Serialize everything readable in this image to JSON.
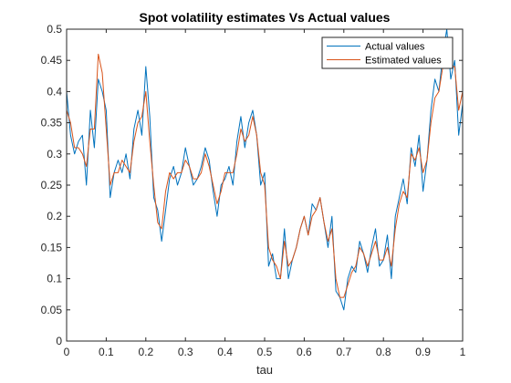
{
  "chart_data": {
    "type": "line",
    "title": "Spot volatility estimates Vs Actual values",
    "xlabel": "tau",
    "ylabel": "",
    "xlim": [
      0,
      1
    ],
    "ylim": [
      0,
      0.5
    ],
    "xticks": [
      0,
      0.1,
      0.2,
      0.3,
      0.4,
      0.5,
      0.6,
      0.7,
      0.8,
      0.9,
      1
    ],
    "xtick_labels": [
      "0",
      "0.1",
      "0.2",
      "0.3",
      "0.4",
      "0.5",
      "0.6",
      "0.7",
      "0.8",
      "0.9",
      "1"
    ],
    "yticks": [
      0,
      0.05,
      0.1,
      0.15,
      0.2,
      0.25,
      0.3,
      0.35,
      0.4,
      0.45,
      0.5
    ],
    "ytick_labels": [
      "0",
      "0.05",
      "0.1",
      "0.15",
      "0.2",
      "0.25",
      "0.3",
      "0.35",
      "0.4",
      "0.45",
      "0.5"
    ],
    "grid": false,
    "legend_position": "top-right",
    "series": [
      {
        "name": "Actual values",
        "color": "#0072BD",
        "x": [
          0,
          0.01,
          0.02,
          0.03,
          0.04,
          0.05,
          0.06,
          0.07,
          0.08,
          0.09,
          0.1,
          0.11,
          0.12,
          0.13,
          0.14,
          0.15,
          0.16,
          0.17,
          0.18,
          0.19,
          0.2,
          0.21,
          0.22,
          0.23,
          0.24,
          0.25,
          0.26,
          0.27,
          0.28,
          0.29,
          0.3,
          0.31,
          0.32,
          0.33,
          0.34,
          0.35,
          0.36,
          0.37,
          0.38,
          0.39,
          0.4,
          0.41,
          0.42,
          0.43,
          0.44,
          0.45,
          0.46,
          0.47,
          0.48,
          0.49,
          0.5,
          0.51,
          0.52,
          0.53,
          0.54,
          0.55,
          0.56,
          0.57,
          0.58,
          0.59,
          0.6,
          0.61,
          0.62,
          0.63,
          0.64,
          0.65,
          0.66,
          0.67,
          0.68,
          0.69,
          0.7,
          0.71,
          0.72,
          0.73,
          0.74,
          0.75,
          0.76,
          0.77,
          0.78,
          0.79,
          0.8,
          0.81,
          0.82,
          0.83,
          0.84,
          0.85,
          0.86,
          0.87,
          0.88,
          0.89,
          0.9,
          0.91,
          0.92,
          0.93,
          0.94,
          0.95,
          0.96,
          0.97,
          0.98,
          0.99,
          1
        ],
        "values": [
          0.4,
          0.33,
          0.3,
          0.32,
          0.33,
          0.25,
          0.37,
          0.31,
          0.42,
          0.4,
          0.37,
          0.23,
          0.27,
          0.29,
          0.27,
          0.3,
          0.26,
          0.34,
          0.37,
          0.33,
          0.44,
          0.36,
          0.23,
          0.21,
          0.16,
          0.21,
          0.26,
          0.28,
          0.25,
          0.27,
          0.31,
          0.28,
          0.25,
          0.26,
          0.28,
          0.31,
          0.29,
          0.24,
          0.2,
          0.25,
          0.26,
          0.28,
          0.25,
          0.32,
          0.36,
          0.31,
          0.35,
          0.37,
          0.33,
          0.25,
          0.27,
          0.12,
          0.14,
          0.1,
          0.1,
          0.18,
          0.1,
          0.13,
          0.15,
          0.18,
          0.2,
          0.17,
          0.22,
          0.21,
          0.23,
          0.19,
          0.15,
          0.2,
          0.08,
          0.07,
          0.05,
          0.1,
          0.12,
          0.11,
          0.16,
          0.14,
          0.11,
          0.15,
          0.18,
          0.12,
          0.13,
          0.17,
          0.1,
          0.2,
          0.23,
          0.26,
          0.22,
          0.31,
          0.28,
          0.33,
          0.24,
          0.29,
          0.37,
          0.42,
          0.4,
          0.46,
          0.5,
          0.42,
          0.45,
          0.33,
          0.38
        ]
      },
      {
        "name": "Estimated values",
        "color": "#D95319",
        "x": [
          0,
          0.01,
          0.02,
          0.03,
          0.04,
          0.05,
          0.06,
          0.07,
          0.08,
          0.09,
          0.1,
          0.11,
          0.12,
          0.13,
          0.14,
          0.15,
          0.16,
          0.17,
          0.18,
          0.19,
          0.2,
          0.21,
          0.22,
          0.23,
          0.24,
          0.25,
          0.26,
          0.27,
          0.28,
          0.29,
          0.3,
          0.31,
          0.32,
          0.33,
          0.34,
          0.35,
          0.36,
          0.37,
          0.38,
          0.39,
          0.4,
          0.41,
          0.42,
          0.43,
          0.44,
          0.45,
          0.46,
          0.47,
          0.48,
          0.49,
          0.5,
          0.51,
          0.52,
          0.53,
          0.54,
          0.55,
          0.56,
          0.57,
          0.58,
          0.59,
          0.6,
          0.61,
          0.62,
          0.63,
          0.64,
          0.65,
          0.66,
          0.67,
          0.68,
          0.69,
          0.7,
          0.71,
          0.72,
          0.73,
          0.74,
          0.75,
          0.76,
          0.77,
          0.78,
          0.79,
          0.8,
          0.81,
          0.82,
          0.83,
          0.84,
          0.85,
          0.86,
          0.87,
          0.88,
          0.89,
          0.9,
          0.91,
          0.92,
          0.93,
          0.94,
          0.95,
          0.96,
          0.97,
          0.98,
          0.99,
          1
        ],
        "values": [
          0.37,
          0.35,
          0.31,
          0.31,
          0.3,
          0.28,
          0.34,
          0.34,
          0.46,
          0.43,
          0.34,
          0.25,
          0.27,
          0.27,
          0.29,
          0.28,
          0.27,
          0.32,
          0.35,
          0.36,
          0.4,
          0.32,
          0.25,
          0.19,
          0.18,
          0.24,
          0.27,
          0.26,
          0.27,
          0.27,
          0.29,
          0.28,
          0.26,
          0.26,
          0.27,
          0.3,
          0.28,
          0.25,
          0.22,
          0.24,
          0.27,
          0.27,
          0.27,
          0.3,
          0.34,
          0.32,
          0.33,
          0.36,
          0.33,
          0.27,
          0.25,
          0.15,
          0.13,
          0.12,
          0.1,
          0.16,
          0.12,
          0.13,
          0.15,
          0.18,
          0.2,
          0.17,
          0.2,
          0.21,
          0.23,
          0.19,
          0.16,
          0.18,
          0.1,
          0.07,
          0.07,
          0.09,
          0.11,
          0.12,
          0.15,
          0.14,
          0.12,
          0.14,
          0.16,
          0.13,
          0.13,
          0.15,
          0.12,
          0.18,
          0.22,
          0.24,
          0.23,
          0.3,
          0.29,
          0.31,
          0.27,
          0.29,
          0.35,
          0.39,
          0.4,
          0.44,
          0.47,
          0.44,
          0.44,
          0.37,
          0.4
        ]
      }
    ]
  }
}
